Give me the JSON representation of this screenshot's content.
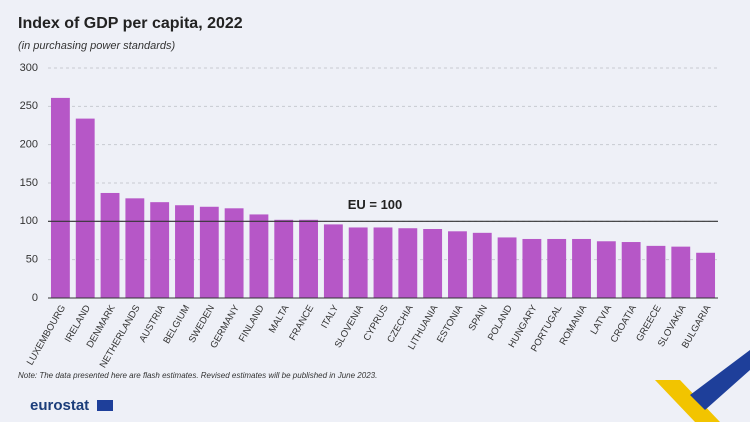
{
  "chart_data": {
    "type": "bar",
    "title": "Index of GDP per capita, 2022",
    "subtitle": "(in purchasing power standards)",
    "categories": [
      "LUXEMBOURG",
      "IRELAND",
      "DENMARK",
      "NETHERLANDS",
      "AUSTRIA",
      "BELGIUM",
      "SWEDEN",
      "GERMANY",
      "FINLAND",
      "MALTA",
      "FRANCE",
      "ITALY",
      "SLOVENIA",
      "CYPRUS",
      "CZECHIA",
      "LITHUANIA",
      "ESTONIA",
      "SPAIN",
      "POLAND",
      "HUNGARY",
      "PORTUGAL",
      "ROMANIA",
      "LATVIA",
      "CROATIA",
      "GREECE",
      "SLOVAKIA",
      "BULGARIA"
    ],
    "values": [
      261,
      234,
      137,
      130,
      125,
      121,
      119,
      117,
      109,
      102,
      102,
      96,
      92,
      92,
      91,
      90,
      87,
      85,
      79,
      77,
      77,
      77,
      74,
      73,
      68,
      67,
      59
    ],
    "color": "#b657c7",
    "ylim": [
      0,
      300
    ],
    "yticks": [
      0,
      50,
      100,
      150,
      200,
      250,
      300
    ],
    "grid": true,
    "reference_line": {
      "value": 100,
      "label": "EU = 100"
    },
    "note": "Note: The data presented here are flash estimates. Revised estimates will be published in June 2023.",
    "source": "eurostat"
  }
}
